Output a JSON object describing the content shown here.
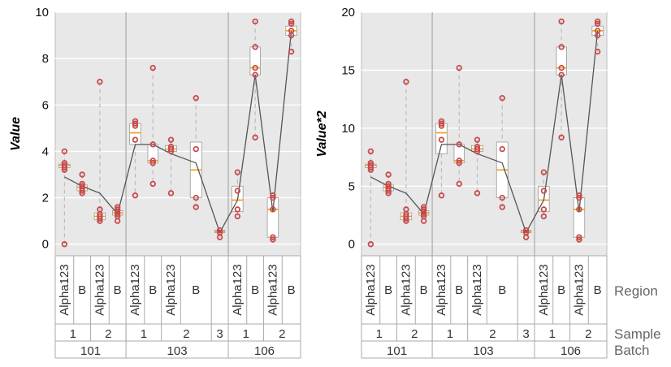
{
  "chart_data": {
    "type": "box",
    "x_hierarchy": [
      "Region",
      "Sample",
      "Batch"
    ],
    "x_level_labels": [
      "Region",
      "Sample",
      "Batch"
    ],
    "categories": [
      {
        "batch": "101",
        "sample": "1",
        "region": "Alpha123"
      },
      {
        "batch": "101",
        "sample": "1",
        "region": "B"
      },
      {
        "batch": "101",
        "sample": "2",
        "region": "Alpha123"
      },
      {
        "batch": "101",
        "sample": "2",
        "region": "B"
      },
      {
        "batch": "103",
        "sample": "1",
        "region": "Alpha123"
      },
      {
        "batch": "103",
        "sample": "1",
        "region": "B"
      },
      {
        "batch": "103",
        "sample": "2",
        "region": "Alpha123"
      },
      {
        "batch": "103",
        "sample": "2",
        "region": "B"
      },
      {
        "batch": "103",
        "sample": "3",
        "region": ""
      },
      {
        "batch": "106",
        "sample": "1",
        "region": "Alpha123"
      },
      {
        "batch": "106",
        "sample": "1",
        "region": "B"
      },
      {
        "batch": "106",
        "sample": "2",
        "region": "Alpha123"
      },
      {
        "batch": "106",
        "sample": "2",
        "region": "B"
      }
    ],
    "panels": [
      {
        "ylabel": "Value",
        "ylim": [
          -0.5,
          10
        ],
        "yticks": [
          0,
          2,
          4,
          6,
          8,
          10
        ],
        "points": [
          [
            0,
            3.2,
            3.3,
            3.4,
            3.5,
            4.0
          ],
          [
            2.2,
            2.3,
            2.4,
            2.5,
            2.6,
            3.0
          ],
          [
            1.0,
            1.1,
            1.2,
            1.3,
            1.5,
            7.0
          ],
          [
            1.0,
            1.2,
            1.3,
            1.4,
            1.5,
            1.6
          ],
          [
            2.1,
            4.5,
            5.1,
            5.2,
            5.3
          ],
          [
            2.6,
            3.5,
            3.6,
            4.3,
            7.6
          ],
          [
            2.2,
            4.0,
            4.1,
            4.2,
            4.5
          ],
          [
            1.6,
            2.0,
            4.1,
            6.3
          ],
          [
            0.3,
            0.5,
            0.6
          ],
          [
            1.2,
            1.5,
            2.3,
            3.1
          ],
          [
            4.6,
            7.3,
            7.6,
            8.5,
            9.6
          ],
          [
            0.2,
            0.3,
            1.5,
            2.0,
            2.1
          ],
          [
            8.3,
            9.0,
            9.2,
            9.5,
            9.6
          ]
        ],
        "boxes": [
          {
            "q1": 3.3,
            "median": 3.4,
            "q3": 3.45,
            "wlow": 0,
            "whigh": 4.0
          },
          {
            "q1": 2.3,
            "median": 2.45,
            "q3": 2.55,
            "wlow": 2.2,
            "whigh": 3.0
          },
          {
            "q1": 1.05,
            "median": 1.2,
            "q3": 1.35,
            "wlow": 1.0,
            "whigh": 7.0
          },
          {
            "q1": 1.25,
            "median": 1.35,
            "q3": 1.45,
            "wlow": 1.0,
            "whigh": 1.6
          },
          {
            "q1": 4.3,
            "median": 4.8,
            "q3": 5.2,
            "wlow": 2.1,
            "whigh": 5.3
          },
          {
            "q1": 3.5,
            "median": 3.6,
            "q3": 4.3,
            "wlow": 2.6,
            "whigh": 7.6
          },
          {
            "q1": 4.0,
            "median": 4.1,
            "q3": 4.25,
            "wlow": 2.2,
            "whigh": 4.5
          },
          {
            "q1": 2.0,
            "median": 3.2,
            "q3": 4.4,
            "wlow": 1.6,
            "whigh": 6.3
          },
          {
            "q1": 0.5,
            "median": 0.55,
            "q3": 0.6,
            "wlow": 0.3,
            "whigh": 0.6
          },
          {
            "q1": 1.4,
            "median": 1.9,
            "q3": 2.5,
            "wlow": 1.2,
            "whigh": 3.1
          },
          {
            "q1": 7.3,
            "median": 7.6,
            "q3": 8.5,
            "wlow": 4.6,
            "whigh": 9.6
          },
          {
            "q1": 0.3,
            "median": 1.5,
            "q3": 2.0,
            "wlow": 0.2,
            "whigh": 2.1
          },
          {
            "q1": 9.0,
            "median": 9.2,
            "q3": 9.4,
            "wlow": 8.3,
            "whigh": 9.6
          }
        ],
        "mean_line": [
          2.9,
          2.5,
          2.2,
          1.3,
          4.3,
          4.3,
          3.9,
          3.5,
          0.5,
          1.9,
          7.3,
          1.4,
          9.2
        ]
      },
      {
        "ylabel": "Value*2",
        "ylim": [
          -1,
          20
        ],
        "yticks": [
          0,
          5,
          10,
          15,
          20
        ],
        "points": [
          [
            0,
            6.4,
            6.6,
            6.8,
            7.0,
            8.0
          ],
          [
            4.4,
            4.6,
            4.8,
            5.0,
            5.2,
            6.0
          ],
          [
            2.0,
            2.2,
            2.4,
            2.6,
            3.0,
            14.0
          ],
          [
            2.0,
            2.4,
            2.6,
            2.8,
            3.0,
            3.2
          ],
          [
            4.2,
            9.0,
            10.2,
            10.4,
            10.6
          ],
          [
            5.2,
            7.0,
            7.2,
            8.6,
            15.2
          ],
          [
            4.4,
            8.0,
            8.2,
            8.4,
            9.0
          ],
          [
            3.2,
            4.0,
            8.2,
            12.6
          ],
          [
            0.6,
            1.0,
            1.2
          ],
          [
            2.4,
            3.0,
            4.6,
            6.2
          ],
          [
            9.2,
            14.6,
            15.2,
            17.0,
            19.2
          ],
          [
            0.4,
            0.6,
            3.0,
            4.0,
            4.2
          ],
          [
            16.6,
            18.0,
            18.4,
            19.0,
            19.2
          ]
        ],
        "boxes": [
          {
            "q1": 6.6,
            "median": 6.8,
            "q3": 6.9,
            "wlow": 0,
            "whigh": 8.0
          },
          {
            "q1": 4.6,
            "median": 4.9,
            "q3": 5.1,
            "wlow": 4.4,
            "whigh": 6.0
          },
          {
            "q1": 2.1,
            "median": 2.4,
            "q3": 2.7,
            "wlow": 2.0,
            "whigh": 14.0
          },
          {
            "q1": 2.5,
            "median": 2.7,
            "q3": 2.9,
            "wlow": 2.0,
            "whigh": 3.2
          },
          {
            "q1": 7.8,
            "median": 9.6,
            "q3": 10.4,
            "wlow": 4.2,
            "whigh": 10.6
          },
          {
            "q1": 7.0,
            "median": 7.2,
            "q3": 8.6,
            "wlow": 5.2,
            "whigh": 15.2
          },
          {
            "q1": 8.0,
            "median": 8.2,
            "q3": 8.5,
            "wlow": 4.4,
            "whigh": 9.0
          },
          {
            "q1": 4.0,
            "median": 6.4,
            "q3": 8.8,
            "wlow": 3.2,
            "whigh": 12.6
          },
          {
            "q1": 1.0,
            "median": 1.1,
            "q3": 1.2,
            "wlow": 0.6,
            "whigh": 1.2
          },
          {
            "q1": 2.8,
            "median": 3.8,
            "q3": 5.0,
            "wlow": 2.4,
            "whigh": 6.2
          },
          {
            "q1": 14.6,
            "median": 15.2,
            "q3": 17.0,
            "wlow": 9.2,
            "whigh": 19.2
          },
          {
            "q1": 0.6,
            "median": 3.0,
            "q3": 4.0,
            "wlow": 0.4,
            "whigh": 4.2
          },
          {
            "q1": 18.0,
            "median": 18.4,
            "q3": 18.8,
            "wlow": 16.6,
            "whigh": 19.2
          }
        ],
        "mean_line": [
          5.8,
          5.0,
          4.4,
          2.6,
          8.6,
          8.6,
          7.8,
          7.0,
          1.0,
          3.8,
          14.6,
          2.8,
          18.4
        ]
      }
    ],
    "grid": true,
    "colors": {
      "plot_bg": "#e8e8e8",
      "grid": "#ffffff",
      "point": "#c84a4a",
      "median": "#f39c12",
      "mean_line": "#555555",
      "box_fill": "#ffffff",
      "whisker": "#bbbbbb",
      "separator": "#aaaaaa",
      "level_text": "#666666"
    }
  }
}
